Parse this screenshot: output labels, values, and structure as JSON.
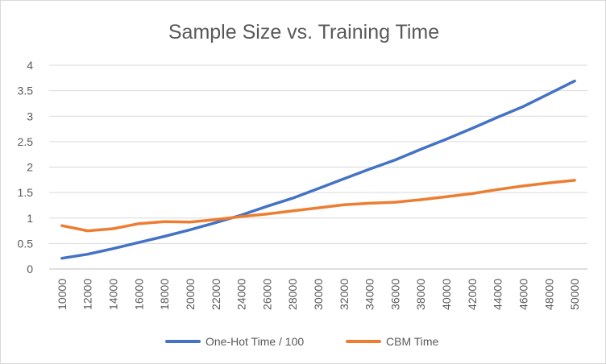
{
  "chart_data": {
    "type": "line",
    "title": "Sample Size vs. Training Time",
    "xlabel": "",
    "ylabel": "",
    "x": [
      "10000",
      "12000",
      "14000",
      "16000",
      "18000",
      "20000",
      "22000",
      "24000",
      "26000",
      "28000",
      "30000",
      "32000",
      "34000",
      "36000",
      "38000",
      "40000",
      "42000",
      "44000",
      "46000",
      "48000",
      "50000"
    ],
    "ylim": [
      0,
      4
    ],
    "yticks": [
      "0",
      "0.5",
      "1",
      "1.5",
      "2",
      "2.5",
      "3",
      "3.5",
      "4"
    ],
    "grid": true,
    "legend_position": "bottom",
    "series": [
      {
        "name": "One-Hot Time / 100",
        "color": "#4472c4",
        "values": [
          0.21,
          0.29,
          0.4,
          0.52,
          0.64,
          0.77,
          0.91,
          1.06,
          1.23,
          1.39,
          1.58,
          1.77,
          1.96,
          2.14,
          2.35,
          2.55,
          2.76,
          2.98,
          3.19,
          3.44,
          3.69
        ]
      },
      {
        "name": "CBM Time",
        "color": "#ed7d31",
        "values": [
          0.85,
          0.75,
          0.79,
          0.89,
          0.93,
          0.92,
          0.97,
          1.03,
          1.08,
          1.14,
          1.2,
          1.26,
          1.29,
          1.31,
          1.36,
          1.42,
          1.48,
          1.56,
          1.63,
          1.69,
          1.74
        ]
      }
    ]
  }
}
